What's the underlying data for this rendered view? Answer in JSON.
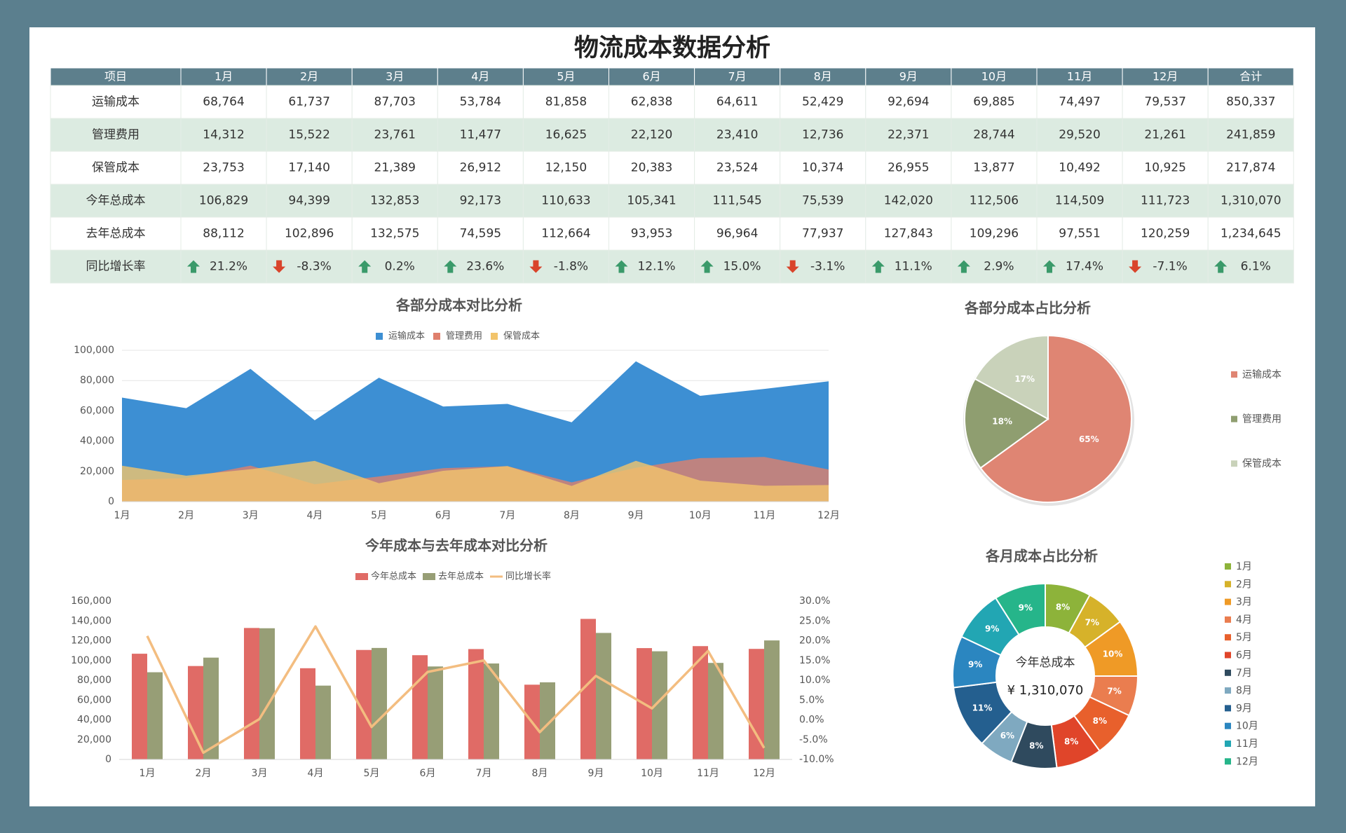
{
  "title": "物流成本数据分析",
  "table": {
    "header": [
      "项目",
      "1月",
      "2月",
      "3月",
      "4月",
      "5月",
      "6月",
      "7月",
      "8月",
      "9月",
      "10月",
      "11月",
      "12月",
      "合计"
    ],
    "rows": [
      [
        "运输成本",
        "68,764",
        "61,737",
        "87,703",
        "53,784",
        "81,858",
        "62,838",
        "64,611",
        "52,429",
        "92,694",
        "69,885",
        "74,497",
        "79,537",
        "850,337"
      ],
      [
        "管理费用",
        "14,312",
        "15,522",
        "23,761",
        "11,477",
        "16,625",
        "22,120",
        "23,410",
        "12,736",
        "22,371",
        "28,744",
        "29,520",
        "21,261",
        "241,859"
      ],
      [
        "保管成本",
        "23,753",
        "17,140",
        "21,389",
        "26,912",
        "12,150",
        "20,383",
        "23,524",
        "10,374",
        "26,955",
        "13,877",
        "10,492",
        "10,925",
        "217,874"
      ],
      [
        "今年总成本",
        "106,829",
        "94,399",
        "132,853",
        "92,173",
        "110,633",
        "105,341",
        "111,545",
        "75,539",
        "142,020",
        "112,506",
        "114,509",
        "111,723",
        "1,310,070"
      ],
      [
        "去年总成本",
        "88,112",
        "102,896",
        "132,575",
        "74,595",
        "112,664",
        "93,953",
        "96,964",
        "77,937",
        "127,843",
        "109,296",
        "97,551",
        "120,259",
        "1,234,645"
      ],
      [
        "同比增长率",
        "21.2%",
        "-8.3%",
        "0.2%",
        "23.6%",
        "-1.8%",
        "12.1%",
        "15.0%",
        "-3.1%",
        "11.1%",
        "2.9%",
        "17.4%",
        "-7.1%",
        "6.1%"
      ]
    ]
  },
  "chart_data": [
    {
      "type": "area",
      "title": "各部分成本对比分析",
      "legend": "top",
      "categories": [
        "1月",
        "2月",
        "3月",
        "4月",
        "5月",
        "6月",
        "7月",
        "8月",
        "9月",
        "10月",
        "11月",
        "12月"
      ],
      "series": [
        {
          "name": "运输成本",
          "color": "#3d8fd3",
          "values": [
            68764,
            61737,
            87703,
            53784,
            81858,
            62838,
            64611,
            52429,
            92694,
            69885,
            74497,
            79537
          ]
        },
        {
          "name": "管理费用",
          "color": "#df7f6c",
          "values": [
            14312,
            15522,
            23761,
            11477,
            16625,
            22120,
            23410,
            12736,
            22371,
            28744,
            29520,
            21261
          ]
        },
        {
          "name": "保管成本",
          "color": "#f2c46b",
          "values": [
            23753,
            17140,
            21389,
            26912,
            12150,
            20383,
            23524,
            10374,
            26955,
            13877,
            10492,
            10925
          ]
        }
      ],
      "ylim": [
        0,
        100000
      ],
      "yticks": [
        0,
        {
          "value": 20000,
          "label": "20,000"
        },
        {
          "value": 40000,
          "label": "40,000"
        },
        {
          "value": 60000,
          "label": "60,000"
        },
        {
          "value": 80000,
          "label": "80,000"
        },
        {
          "value": 100000,
          "label": "100,000"
        }
      ],
      "grid": true
    },
    {
      "type": "pie",
      "title": "各部分成本占比分析",
      "legend": "right",
      "categories": [
        "运输成本",
        "管理费用",
        "保管成本"
      ],
      "values": [
        65,
        18,
        17
      ],
      "value_labels": [
        "65%",
        "18%",
        "17%"
      ],
      "colors": [
        "#df8573",
        "#8f9e70",
        "#c9d2ba"
      ]
    },
    {
      "type": "combo",
      "title": "今年成本与去年成本对比分析",
      "legend": "top",
      "categories": [
        "1月",
        "2月",
        "3月",
        "4月",
        "5月",
        "6月",
        "7月",
        "8月",
        "9月",
        "10月",
        "11月",
        "12月"
      ],
      "series": [
        {
          "name": "今年总成本",
          "type": "bar",
          "color": "#e06b66",
          "values": [
            106829,
            94399,
            132853,
            92173,
            110633,
            105341,
            111545,
            75539,
            142020,
            112506,
            114509,
            111723
          ]
        },
        {
          "name": "去年总成本",
          "type": "bar",
          "color": "#979e76",
          "values": [
            88112,
            102896,
            132575,
            74595,
            112664,
            93953,
            96964,
            77937,
            127843,
            109296,
            97551,
            120259
          ]
        },
        {
          "name": "同比增长率",
          "type": "line",
          "axis": "y2",
          "color": "#f3bd80",
          "values": [
            21.2,
            -8.3,
            0.2,
            23.6,
            -1.8,
            12.1,
            15.0,
            -3.1,
            11.1,
            2.9,
            17.4,
            -7.1
          ]
        }
      ],
      "ylim": [
        0,
        160000
      ],
      "yticks": [
        0,
        {
          "value": 20000,
          "label": "20,000"
        },
        {
          "value": 40000,
          "label": "40,000"
        },
        {
          "value": 60000,
          "label": "60,000"
        },
        {
          "value": 80000,
          "label": "80,000"
        },
        {
          "value": 100000,
          "label": "100,000"
        },
        {
          "value": 120000,
          "label": "120,000"
        },
        {
          "value": 140000,
          "label": "140,000"
        },
        {
          "value": 160000,
          "label": "160,000"
        }
      ],
      "y2lim": [
        -10,
        30
      ],
      "y2ticks": [
        {
          "value": -10,
          "label": "-10.0%"
        },
        {
          "value": -5,
          "label": "-5.0%"
        },
        {
          "value": 0,
          "label": "0.0%"
        },
        {
          "value": 5,
          "label": "5.0%"
        },
        {
          "value": 10,
          "label": "10.0%"
        },
        {
          "value": 15,
          "label": "15.0%"
        },
        {
          "value": 20,
          "label": "20.0%"
        },
        {
          "value": 25,
          "label": "25.0%"
        },
        {
          "value": 30,
          "label": "30.0%"
        }
      ],
      "grid": false
    },
    {
      "type": "doughnut",
      "title": "各月成本占比分析",
      "legend": "right",
      "center_label": "今年总成本",
      "center_value": "¥ 1,310,070",
      "categories": [
        "1月",
        "2月",
        "3月",
        "4月",
        "5月",
        "6月",
        "7月",
        "8月",
        "9月",
        "10月",
        "11月",
        "12月"
      ],
      "values": [
        8,
        7,
        10,
        7,
        8,
        8,
        8,
        6,
        11,
        9,
        9,
        9
      ],
      "value_labels": [
        "8%",
        "7%",
        "10%",
        "7%",
        "8%",
        "8%",
        "8%",
        "6%",
        "11%",
        "9%",
        "9%",
        "9%"
      ],
      "colors": [
        "#8db33a",
        "#d6b22a",
        "#ef9a26",
        "#ea7d4f",
        "#e8602c",
        "#e0452a",
        "#2f4a5e",
        "#7fa9c0",
        "#245f8f",
        "#2b86c0",
        "#22a6b3",
        "#26b58a"
      ]
    }
  ]
}
